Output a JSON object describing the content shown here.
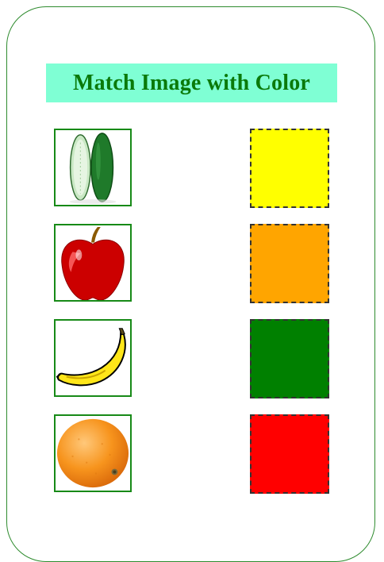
{
  "page": {
    "title": "Match Image with Color"
  },
  "images": [
    {
      "name": "cucumber",
      "icon": "cucumber-icon"
    },
    {
      "name": "apple",
      "icon": "apple-icon"
    },
    {
      "name": "banana",
      "icon": "banana-icon"
    },
    {
      "name": "orange",
      "icon": "orange-icon"
    }
  ],
  "color_targets": [
    {
      "name": "yellow",
      "color": "#ffff00"
    },
    {
      "name": "orange",
      "color": "#ffa500"
    },
    {
      "name": "green",
      "color": "#008000"
    },
    {
      "name": "red",
      "color": "#ff0000"
    }
  ],
  "theme": {
    "title_background": "#7fffd4",
    "title_color": "#0a7a0a",
    "border_color": "#178a17"
  }
}
